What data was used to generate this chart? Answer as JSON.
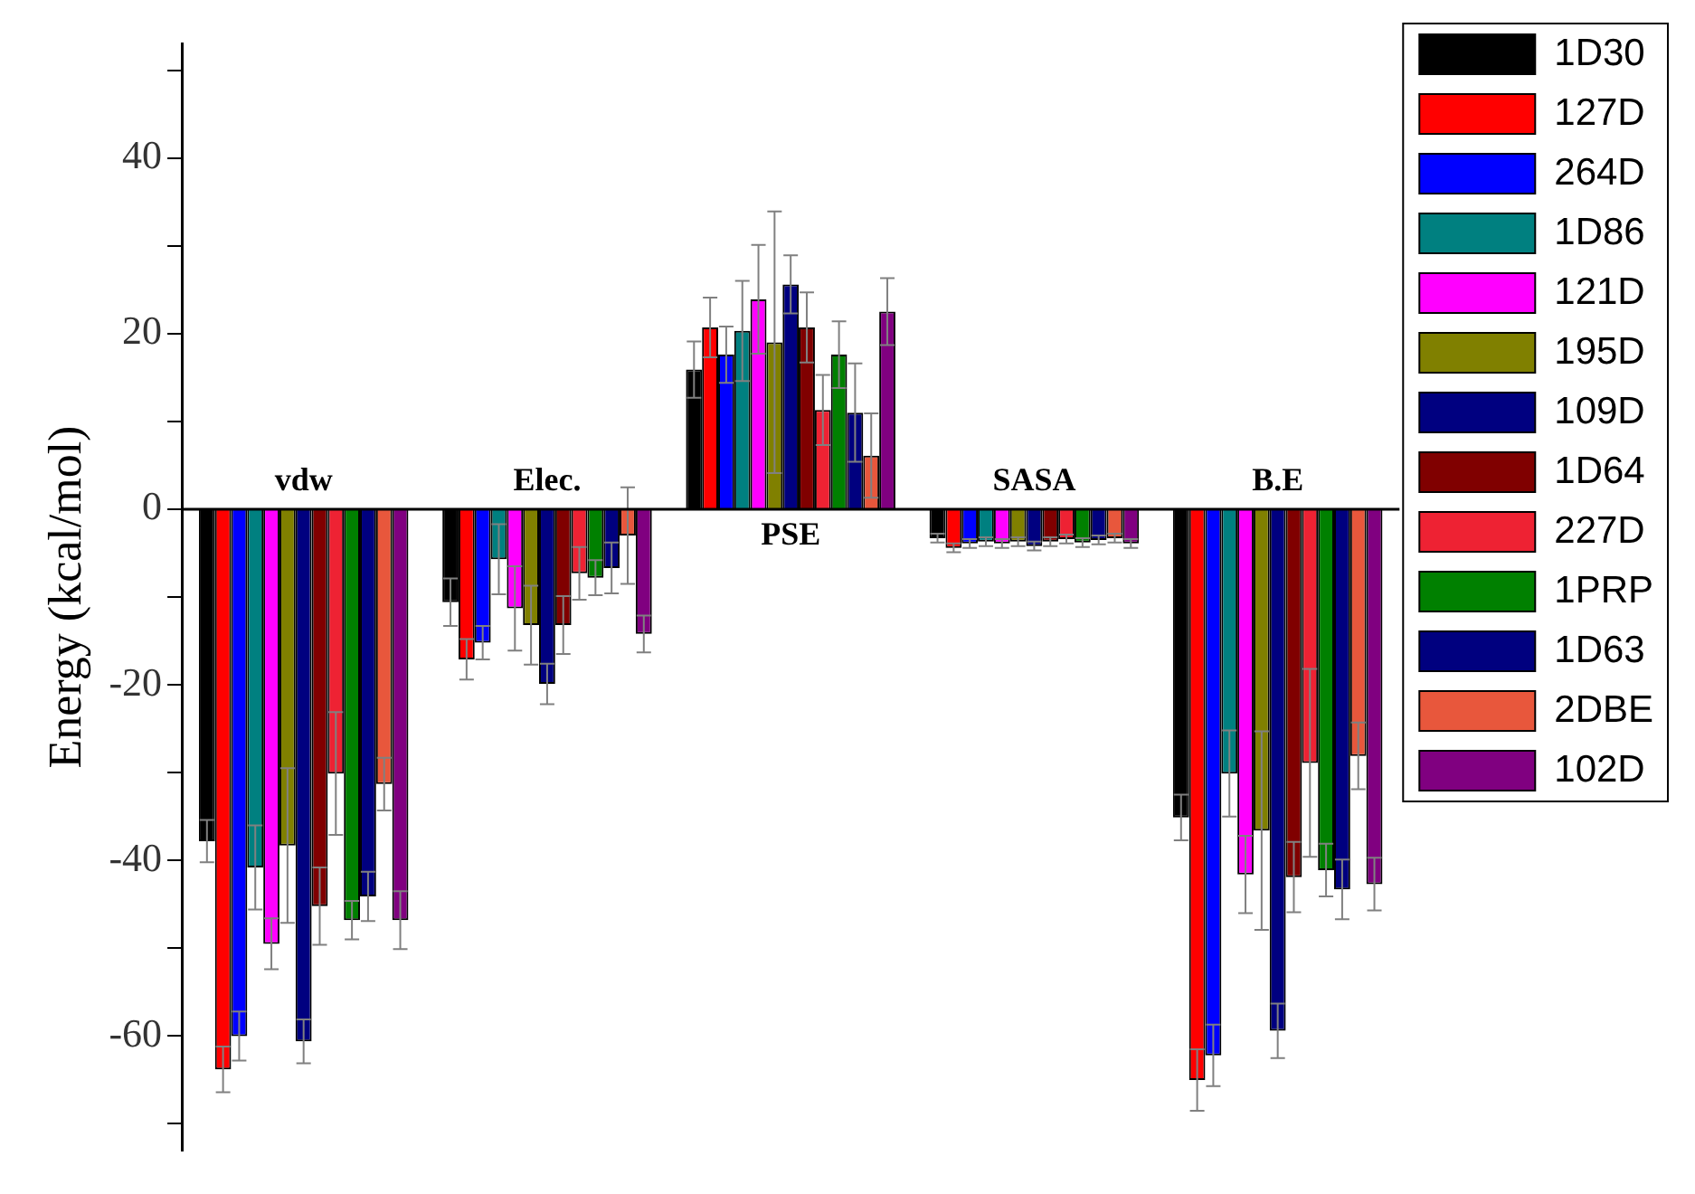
{
  "chart_data": {
    "type": "bar",
    "ylabel": "Energy (kcal/mol)",
    "categories": [
      "vdw",
      "Elec.",
      "PSE",
      "SASA",
      "B.E"
    ],
    "series": [
      {
        "name": "1D30",
        "color": "#000000",
        "values": [
          -37.8,
          -10.6,
          15.9,
          -3.3,
          -35.1
        ],
        "errors": [
          2.4,
          2.7,
          3.2,
          0.5,
          2.6
        ]
      },
      {
        "name": "127D",
        "color": "#ff0000",
        "values": [
          -63.8,
          -17.1,
          20.7,
          -4.4,
          -65
        ],
        "errors": [
          2.6,
          2.3,
          3.4,
          0.5,
          3.5
        ]
      },
      {
        "name": "264D",
        "color": "#0000ff",
        "values": [
          -60,
          -15.2,
          17.6,
          -3.9,
          -62.2
        ],
        "errors": [
          2.8,
          1.9,
          3.2,
          0.5,
          3.5
        ]
      },
      {
        "name": "1D86",
        "color": "#008080",
        "values": [
          -40.8,
          -5.7,
          20.3,
          -3.7,
          -30.1
        ],
        "errors": [
          4.8,
          4,
          5.7,
          0.5,
          4.9
        ]
      },
      {
        "name": "121D",
        "color": "#ff00ff",
        "values": [
          -49.5,
          -11.3,
          23.9,
          -3.9,
          -41.6
        ],
        "errors": [
          2.9,
          4.8,
          6.2,
          0.5,
          4.4
        ]
      },
      {
        "name": "195D",
        "color": "#808000",
        "values": [
          -38.3,
          -13.2,
          19,
          -3.7,
          -36.6
        ],
        "errors": [
          8.8,
          4.5,
          14.9,
          0.5,
          11.3
        ]
      },
      {
        "name": "109D",
        "color": "#000080",
        "values": [
          -60.6,
          -19.9,
          25.6,
          -4.2,
          -59.4
        ],
        "errors": [
          2.5,
          2.3,
          3.3,
          0.5,
          3.1
        ]
      },
      {
        "name": "1D64",
        "color": "#800000",
        "values": [
          -45.2,
          -13.2,
          20.7,
          -3.7,
          -41.9
        ],
        "errors": [
          4.4,
          3.3,
          4,
          0.5,
          4
        ]
      },
      {
        "name": "227D",
        "color": "#ee2233",
        "values": [
          -30.1,
          -7.3,
          11.3,
          -3.4,
          -28.9
        ],
        "errors": [
          7,
          3,
          4,
          0.5,
          10.7
        ]
      },
      {
        "name": "1PRP",
        "color": "#008000",
        "values": [
          -46.8,
          -7.8,
          17.6,
          -3.8,
          -41.1
        ],
        "errors": [
          2.2,
          2,
          3.8,
          0.5,
          3
        ]
      },
      {
        "name": "1D63",
        "color": "#00007f",
        "values": [
          -44.1,
          -6.7,
          11,
          -3.5,
          -43.3
        ],
        "errors": [
          2.8,
          2.9,
          5.6,
          0.5,
          3.4
        ]
      },
      {
        "name": "2DBE",
        "color": "#e8573c",
        "values": [
          -31.3,
          -3,
          6.1,
          -3.3,
          -28.1
        ],
        "errors": [
          3,
          5.5,
          4.8,
          0.5,
          3.8
        ]
      },
      {
        "name": "102D",
        "color": "#800080",
        "values": [
          -46.8,
          -14.2,
          22.5,
          -3.9,
          -42.7
        ],
        "errors": [
          3.3,
          2.1,
          3.8,
          0.5,
          3
        ]
      }
    ],
    "ylim": [
      -73,
      53
    ],
    "yticks": [
      {
        "value": -70,
        "label": null
      },
      -60,
      {
        "value": -50,
        "label": null
      },
      -40,
      {
        "value": -30,
        "label": null
      },
      -20,
      {
        "value": -10,
        "label": null
      },
      0,
      {
        "value": 10,
        "label": null
      },
      20,
      {
        "value": 30,
        "label": null
      },
      40,
      {
        "value": 50,
        "label": null
      }
    ],
    "legend": "right",
    "grid": false
  }
}
